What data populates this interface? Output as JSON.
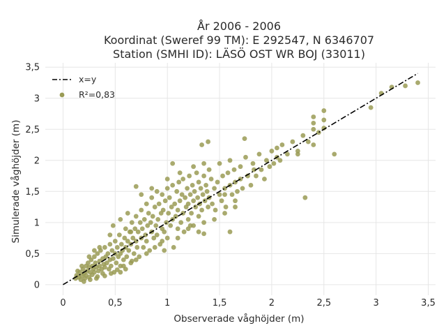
{
  "title_lines": [
    "År 2006 - 2006",
    "Koordinat (Sweref 99 TM): E 292547, N 6346707",
    "Station (SMHI ID): LÄSÖ OST WR BOJ (33011)"
  ],
  "colors": {
    "points": "#9a9b55",
    "identity_line": "#000000",
    "grid": "#e6e6e6",
    "background": "#ffffff"
  },
  "chart_data": {
    "type": "scatter",
    "title": "År 2006 - 2006 / Koordinat (Sweref 99 TM): E 292547, N 6346707 / Station (SMHI ID): LÄSÖ OST WR BOJ (33011)",
    "xlabel": "Observerade våghöjder (m)",
    "ylabel": "Simulerade våghöjder (m)",
    "xlim": [
      -0.17,
      3.57
    ],
    "ylim": [
      -0.17,
      3.57
    ],
    "xticks": [
      0,
      0.5,
      1,
      1.5,
      2,
      2.5,
      3,
      3.5
    ],
    "yticks": [
      0,
      0.5,
      1,
      1.5,
      2,
      2.5,
      3,
      3.5
    ],
    "xtick_labels": [
      "0",
      "0,5",
      "1",
      "1,5",
      "2",
      "2,5",
      "3",
      "3,5"
    ],
    "ytick_labels": [
      "0",
      "0,5",
      "1",
      "1,5",
      "2",
      "2,5",
      "3",
      "3,5"
    ],
    "grid": true,
    "legend_position": "top-left",
    "legend": [
      "x=y",
      "R²=0,83"
    ],
    "identity_line": {
      "name": "x=y",
      "x": [
        0,
        3.4
      ],
      "y": [
        0,
        3.4
      ]
    },
    "series": [
      {
        "name": "R²=0,83",
        "points": [
          [
            0.12,
            0.1
          ],
          [
            0.13,
            0.15
          ],
          [
            0.15,
            0.12
          ],
          [
            0.16,
            0.2
          ],
          [
            0.17,
            0.08
          ],
          [
            0.18,
            0.14
          ],
          [
            0.19,
            0.25
          ],
          [
            0.2,
            0.18
          ],
          [
            0.21,
            0.1
          ],
          [
            0.22,
            0.3
          ],
          [
            0.22,
            0.15
          ],
          [
            0.23,
            0.22
          ],
          [
            0.24,
            0.35
          ],
          [
            0.25,
            0.12
          ],
          [
            0.25,
            0.28
          ],
          [
            0.26,
            0.2
          ],
          [
            0.27,
            0.4
          ],
          [
            0.28,
            0.16
          ],
          [
            0.28,
            0.3
          ],
          [
            0.29,
            0.25
          ],
          [
            0.3,
            0.45
          ],
          [
            0.3,
            0.2
          ],
          [
            0.31,
            0.35
          ],
          [
            0.32,
            0.1
          ],
          [
            0.32,
            0.28
          ],
          [
            0.33,
            0.5
          ],
          [
            0.34,
            0.22
          ],
          [
            0.35,
            0.38
          ],
          [
            0.35,
            0.3
          ],
          [
            0.36,
            0.55
          ],
          [
            0.37,
            0.25
          ],
          [
            0.38,
            0.42
          ],
          [
            0.38,
            0.18
          ],
          [
            0.39,
            0.33
          ],
          [
            0.4,
            0.6
          ],
          [
            0.4,
            0.28
          ],
          [
            0.41,
            0.45
          ],
          [
            0.42,
            0.35
          ],
          [
            0.43,
            0.5
          ],
          [
            0.44,
            0.25
          ],
          [
            0.45,
            0.4
          ],
          [
            0.45,
            0.65
          ],
          [
            0.46,
            0.3
          ],
          [
            0.47,
            0.55
          ],
          [
            0.48,
            0.42
          ],
          [
            0.49,
            0.2
          ],
          [
            0.5,
            0.5
          ],
          [
            0.5,
            0.7
          ],
          [
            0.51,
            0.35
          ],
          [
            0.52,
            0.6
          ],
          [
            0.53,
            0.45
          ],
          [
            0.54,
            0.8
          ],
          [
            0.55,
            0.5
          ],
          [
            0.55,
            0.3
          ],
          [
            0.56,
            0.65
          ],
          [
            0.57,
            0.55
          ],
          [
            0.58,
            0.4
          ],
          [
            0.59,
            0.75
          ],
          [
            0.6,
            0.6
          ],
          [
            0.6,
            0.9
          ],
          [
            0.61,
            0.45
          ],
          [
            0.62,
            0.7
          ],
          [
            0.63,
            0.55
          ],
          [
            0.64,
            0.85
          ],
          [
            0.65,
            0.65
          ],
          [
            0.65,
            0.35
          ],
          [
            0.66,
            1.0
          ],
          [
            0.67,
            0.75
          ],
          [
            0.68,
            0.5
          ],
          [
            0.69,
            0.9
          ],
          [
            0.7,
            0.7
          ],
          [
            0.7,
            1.1
          ],
          [
            0.71,
            0.6
          ],
          [
            0.72,
            0.85
          ],
          [
            0.73,
            0.45
          ],
          [
            0.74,
            1.0
          ],
          [
            0.75,
            0.75
          ],
          [
            0.75,
            1.2
          ],
          [
            0.76,
            0.9
          ],
          [
            0.77,
            0.6
          ],
          [
            0.78,
            1.05
          ],
          [
            0.79,
            0.8
          ],
          [
            0.8,
            1.3
          ],
          [
            0.8,
            0.7
          ],
          [
            0.81,
            0.95
          ],
          [
            0.82,
            1.15
          ],
          [
            0.83,
            0.55
          ],
          [
            0.84,
            1.0
          ],
          [
            0.85,
            0.85
          ],
          [
            0.85,
            1.4
          ],
          [
            0.86,
            1.1
          ],
          [
            0.87,
            0.75
          ],
          [
            0.88,
            1.25
          ],
          [
            0.89,
            0.95
          ],
          [
            0.9,
            1.5
          ],
          [
            0.9,
            0.8
          ],
          [
            0.91,
            1.05
          ],
          [
            0.92,
            1.3
          ],
          [
            0.93,
            0.65
          ],
          [
            0.94,
            1.15
          ],
          [
            0.95,
            0.9
          ],
          [
            0.95,
            1.45
          ],
          [
            0.96,
            1.2
          ],
          [
            0.97,
            0.85
          ],
          [
            0.98,
            1.35
          ],
          [
            0.99,
            1.0
          ],
          [
            1.0,
            1.55
          ],
          [
            1.0,
            0.75
          ],
          [
            1.01,
            1.15
          ],
          [
            1.02,
            1.4
          ],
          [
            1.03,
            0.95
          ],
          [
            1.04,
            1.25
          ],
          [
            1.05,
            1.05
          ],
          [
            1.05,
            1.6
          ],
          [
            1.06,
            0.6
          ],
          [
            1.07,
            1.3
          ],
          [
            1.08,
            1.1
          ],
          [
            1.09,
            1.5
          ],
          [
            1.1,
            0.9
          ],
          [
            1.1,
            1.2
          ],
          [
            1.11,
            1.65
          ],
          [
            1.12,
            1.35
          ],
          [
            1.13,
            1.0
          ],
          [
            1.14,
            1.45
          ],
          [
            1.15,
            1.15
          ],
          [
            1.15,
            1.7
          ],
          [
            1.16,
            0.85
          ],
          [
            1.17,
            1.4
          ],
          [
            1.18,
            1.25
          ],
          [
            1.19,
            1.55
          ],
          [
            1.2,
            1.05
          ],
          [
            1.2,
            1.3
          ],
          [
            1.21,
            1.75
          ],
          [
            1.22,
            1.45
          ],
          [
            1.23,
            1.15
          ],
          [
            1.24,
            1.6
          ],
          [
            1.25,
            1.35
          ],
          [
            1.25,
            0.95
          ],
          [
            1.26,
            1.5
          ],
          [
            1.27,
            1.25
          ],
          [
            1.28,
            1.8
          ],
          [
            1.29,
            1.4
          ],
          [
            1.3,
            1.1
          ],
          [
            1.3,
            1.65
          ],
          [
            1.31,
            1.3
          ],
          [
            1.32,
            1.55
          ],
          [
            1.33,
            1.2
          ],
          [
            1.34,
            1.45
          ],
          [
            1.35,
            1.75
          ],
          [
            1.35,
            1.0
          ],
          [
            1.36,
            1.35
          ],
          [
            1.37,
            1.6
          ],
          [
            1.38,
            1.5
          ],
          [
            1.39,
            1.25
          ],
          [
            1.4,
            1.85
          ],
          [
            1.4,
            1.4
          ],
          [
            1.42,
            1.7
          ],
          [
            1.43,
            1.3
          ],
          [
            1.45,
            1.55
          ],
          [
            1.46,
            1.2
          ],
          [
            1.48,
            1.65
          ],
          [
            1.5,
            1.45
          ],
          [
            1.5,
            1.95
          ],
          [
            1.52,
            1.35
          ],
          [
            1.53,
            1.75
          ],
          [
            1.55,
            1.55
          ],
          [
            1.56,
            1.25
          ],
          [
            1.58,
            1.8
          ],
          [
            1.6,
            1.6
          ],
          [
            1.6,
            2.0
          ],
          [
            1.62,
            1.45
          ],
          [
            1.64,
            1.85
          ],
          [
            1.65,
            1.65
          ],
          [
            1.67,
            1.5
          ],
          [
            1.7,
            1.9
          ],
          [
            1.7,
            1.7
          ],
          [
            1.72,
            1.55
          ],
          [
            1.75,
            2.05
          ],
          [
            1.77,
            1.75
          ],
          [
            1.8,
            1.6
          ],
          [
            1.82,
            1.95
          ],
          [
            1.85,
            1.75
          ],
          [
            1.88,
            2.1
          ],
          [
            1.9,
            1.85
          ],
          [
            1.93,
            1.7
          ],
          [
            1.95,
            2.0
          ],
          [
            1.98,
            1.9
          ],
          [
            2.0,
            2.15
          ],
          [
            2.02,
            1.95
          ],
          [
            2.05,
            2.2
          ],
          [
            2.08,
            2.0
          ],
          [
            2.1,
            2.25
          ],
          [
            2.15,
            2.1
          ],
          [
            2.2,
            2.3
          ],
          [
            2.25,
            2.15
          ],
          [
            2.3,
            2.4
          ],
          [
            2.35,
            2.3
          ],
          [
            2.4,
            2.5
          ],
          [
            2.45,
            2.45
          ],
          [
            1.33,
            2.25
          ],
          [
            1.39,
            2.3
          ],
          [
            1.74,
            2.35
          ],
          [
            1.05,
            1.95
          ],
          [
            0.7,
            1.58
          ],
          [
            0.55,
            1.05
          ],
          [
            0.97,
            0.55
          ],
          [
            1.35,
            0.82
          ],
          [
            1.6,
            0.85
          ],
          [
            2.32,
            1.4
          ],
          [
            2.6,
            2.1
          ],
          [
            2.4,
            2.25
          ],
          [
            2.5,
            2.8
          ],
          [
            2.5,
            2.65
          ],
          [
            2.4,
            2.6
          ],
          [
            2.4,
            2.7
          ],
          [
            2.95,
            2.85
          ],
          [
            3.05,
            3.08
          ],
          [
            3.15,
            3.18
          ],
          [
            3.28,
            3.2
          ],
          [
            3.4,
            3.25
          ],
          [
            2.5,
            2.52
          ],
          [
            2.25,
            2.1
          ],
          [
            2.05,
            2.05
          ],
          [
            1.83,
            1.85
          ],
          [
            1.55,
            1.45
          ],
          [
            1.65,
            1.25
          ],
          [
            1.2,
            0.9
          ],
          [
            0.65,
            0.85
          ],
          [
            0.45,
            0.8
          ],
          [
            0.35,
            0.6
          ],
          [
            0.25,
            0.45
          ],
          [
            0.3,
            0.55
          ],
          [
            0.55,
            0.2
          ],
          [
            0.6,
            0.25
          ],
          [
            0.7,
            0.4
          ],
          [
            0.8,
            0.5
          ],
          [
            0.88,
            0.6
          ],
          [
            0.95,
            0.7
          ],
          [
            1.1,
            0.75
          ],
          [
            1.22,
            0.95
          ],
          [
            1.3,
            0.85
          ],
          [
            1.45,
            1.05
          ],
          [
            1.55,
            1.15
          ],
          [
            1.65,
            1.35
          ],
          [
            0.48,
            0.95
          ],
          [
            0.62,
            1.15
          ],
          [
            0.75,
            1.45
          ],
          [
            0.85,
            1.55
          ],
          [
            1.0,
            1.7
          ],
          [
            1.12,
            1.8
          ],
          [
            1.25,
            1.9
          ],
          [
            1.35,
            1.95
          ],
          [
            0.18,
            0.3
          ],
          [
            0.14,
            0.22
          ],
          [
            0.2,
            0.05
          ],
          [
            0.26,
            0.08
          ],
          [
            0.33,
            0.13
          ],
          [
            0.4,
            0.14
          ],
          [
            0.46,
            0.18
          ],
          [
            0.52,
            0.24
          ],
          [
            0.58,
            0.3
          ],
          [
            0.66,
            0.38
          ]
        ]
      }
    ]
  }
}
